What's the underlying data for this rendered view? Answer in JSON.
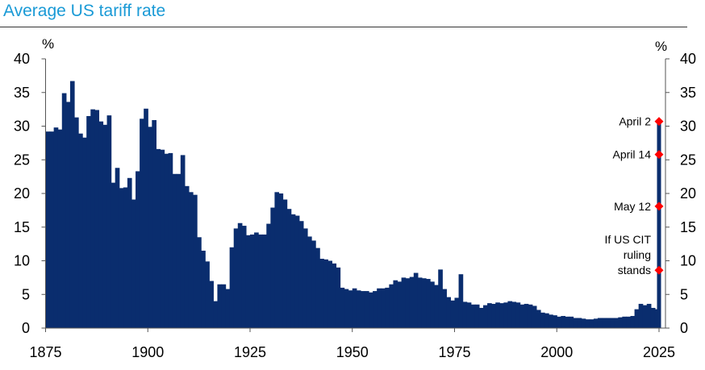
{
  "chart_data": {
    "type": "bar",
    "title": "Average US tariff rate",
    "ylabel_left": "%",
    "ylabel_right": "%",
    "xlim": [
      1875,
      2025
    ],
    "ylim": [
      0,
      40
    ],
    "x_ticks": [
      1875,
      1900,
      1925,
      1950,
      1975,
      2000,
      2025
    ],
    "y_ticks": [
      0,
      5,
      10,
      15,
      20,
      25,
      30,
      35,
      40
    ],
    "colors": {
      "bars": "#0a2d6e",
      "markers": "#ff0000",
      "title": "#1a9ad6"
    },
    "years": [
      1875,
      1876,
      1877,
      1878,
      1879,
      1880,
      1881,
      1882,
      1883,
      1884,
      1885,
      1886,
      1887,
      1888,
      1889,
      1890,
      1891,
      1892,
      1893,
      1894,
      1895,
      1896,
      1897,
      1898,
      1899,
      1900,
      1901,
      1902,
      1903,
      1904,
      1905,
      1906,
      1907,
      1908,
      1909,
      1910,
      1911,
      1912,
      1913,
      1914,
      1915,
      1916,
      1917,
      1918,
      1919,
      1920,
      1921,
      1922,
      1923,
      1924,
      1925,
      1926,
      1927,
      1928,
      1929,
      1930,
      1931,
      1932,
      1933,
      1934,
      1935,
      1936,
      1937,
      1938,
      1939,
      1940,
      1941,
      1942,
      1943,
      1944,
      1945,
      1946,
      1947,
      1948,
      1949,
      1950,
      1951,
      1952,
      1953,
      1954,
      1955,
      1956,
      1957,
      1958,
      1959,
      1960,
      1961,
      1962,
      1963,
      1964,
      1965,
      1966,
      1967,
      1968,
      1969,
      1970,
      1971,
      1972,
      1973,
      1974,
      1975,
      1976,
      1977,
      1978,
      1979,
      1980,
      1981,
      1982,
      1983,
      1984,
      1985,
      1986,
      1987,
      1988,
      1989,
      1990,
      1991,
      1992,
      1993,
      1994,
      1995,
      1996,
      1997,
      1998,
      1999,
      2000,
      2001,
      2002,
      2003,
      2004,
      2005,
      2006,
      2007,
      2008,
      2009,
      2010,
      2011,
      2012,
      2013,
      2014,
      2015,
      2016,
      2017,
      2018,
      2019,
      2020,
      2021,
      2022,
      2023,
      2024
    ],
    "values": [
      29.2,
      29.2,
      29.8,
      29.5,
      34.9,
      33.6,
      36.7,
      31.3,
      28.9,
      28.3,
      31.5,
      32.5,
      32.4,
      30.7,
      30.2,
      31.6,
      21.6,
      23.8,
      20.8,
      20.9,
      22.3,
      19.1,
      23.3,
      31.1,
      32.6,
      29.9,
      30.9,
      26.6,
      26.5,
      25.9,
      26.0,
      22.9,
      22.9,
      25.7,
      21.1,
      20.2,
      19.8,
      13.5,
      11.5,
      9.9,
      7.0,
      4.0,
      6.5,
      6.5,
      5.8,
      12.0,
      14.8,
      15.6,
      15.2,
      13.8,
      13.9,
      14.2,
      13.9,
      13.9,
      15.5,
      17.9,
      20.2,
      20.0,
      19.1,
      17.7,
      16.9,
      16.7,
      15.9,
      14.8,
      13.6,
      13.0,
      11.9,
      10.3,
      10.2,
      10.0,
      9.6,
      9.0,
      6.0,
      5.8,
      5.6,
      5.9,
      5.6,
      5.5,
      5.5,
      5.3,
      5.5,
      5.9,
      5.9,
      6.0,
      6.5,
      7.1,
      6.9,
      7.5,
      7.4,
      7.6,
      8.2,
      7.5,
      7.4,
      7.3,
      6.9,
      6.4,
      8.7,
      5.8,
      4.6,
      4.1,
      4.5,
      8.0,
      3.9,
      3.8,
      3.5,
      3.5,
      3.0,
      3.4,
      3.7,
      3.6,
      3.8,
      3.7,
      3.8,
      4.0,
      3.9,
      3.8,
      3.5,
      3.6,
      3.5,
      3.3,
      2.7,
      2.3,
      2.2,
      2.0,
      1.9,
      1.7,
      1.8,
      1.7,
      1.7,
      1.5,
      1.5,
      1.4,
      1.3,
      1.3,
      1.4,
      1.5,
      1.5,
      1.5,
      1.5,
      1.5,
      1.6,
      1.7,
      1.7,
      1.8,
      2.8,
      3.6,
      3.4,
      3.6,
      3.0,
      2.8
    ],
    "spike": {
      "year": 2025,
      "value": 30.7
    },
    "markers": [
      {
        "label": "April 2",
        "value": 30.7
      },
      {
        "label": "April 14",
        "value": 25.8
      },
      {
        "label": "May 12",
        "value": 18.1
      },
      {
        "label": "If US CIT ruling stands",
        "lines": [
          "If US CIT",
          "ruling",
          "stands"
        ],
        "value": 8.6
      }
    ]
  }
}
